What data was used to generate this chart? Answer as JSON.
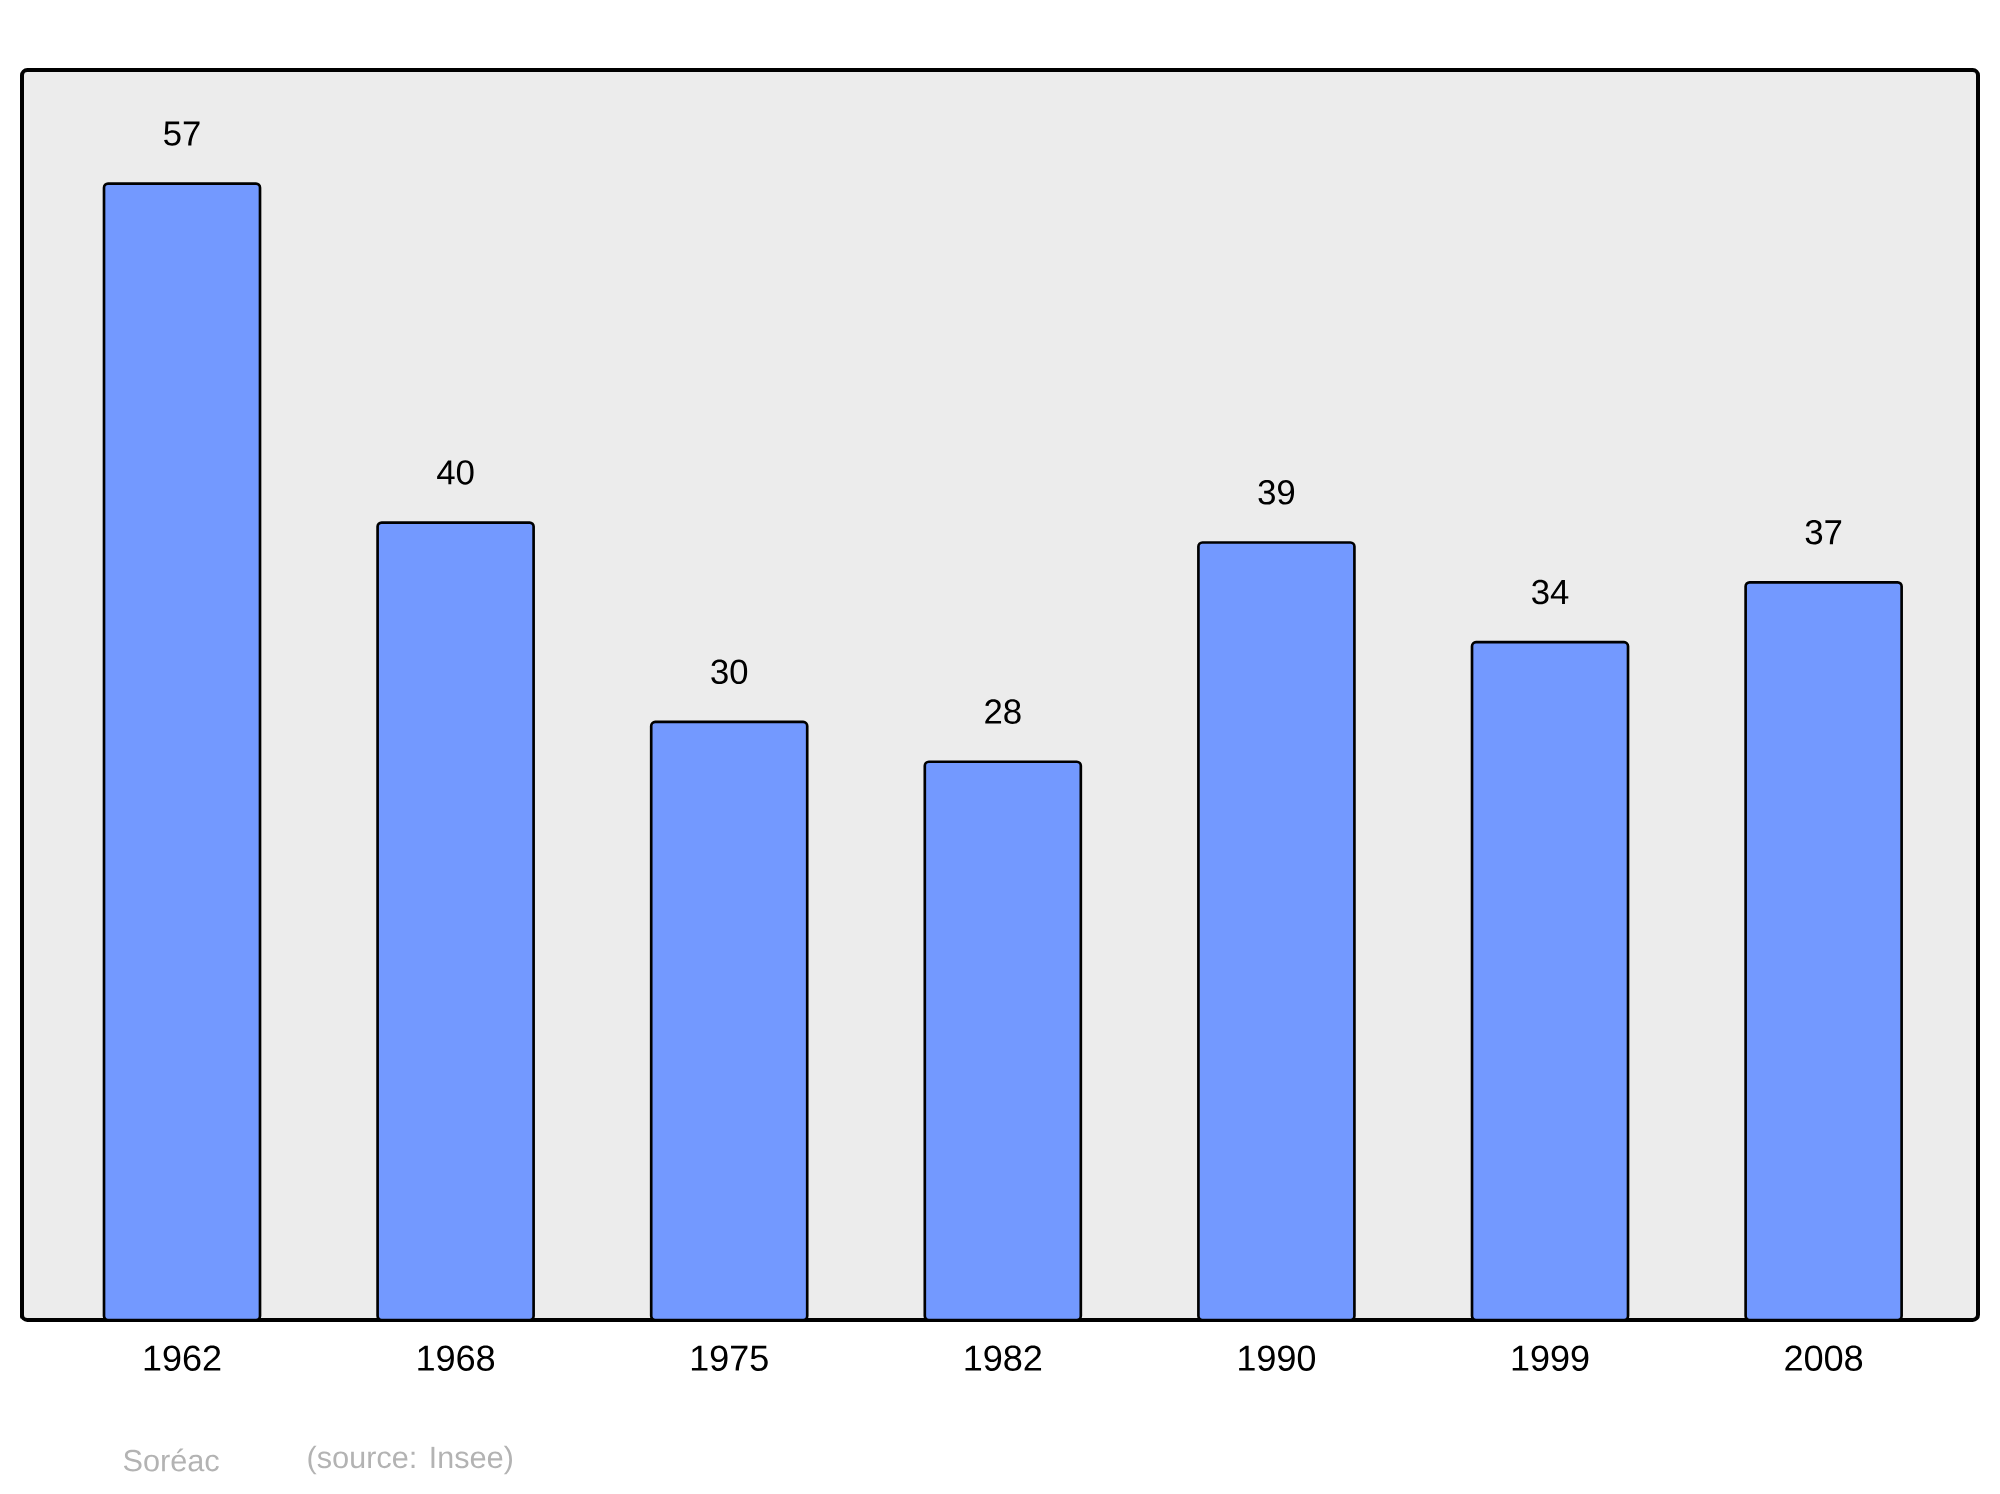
{
  "chart_data": {
    "type": "bar",
    "categories": [
      "1962",
      "1968",
      "1975",
      "1982",
      "1990",
      "1999",
      "2008"
    ],
    "values": [
      57,
      40,
      30,
      28,
      39,
      34,
      37
    ],
    "color": "#7399ff",
    "data_labels": true,
    "annotations": [
      "Soréac",
      "(source: Insee)"
    ]
  }
}
